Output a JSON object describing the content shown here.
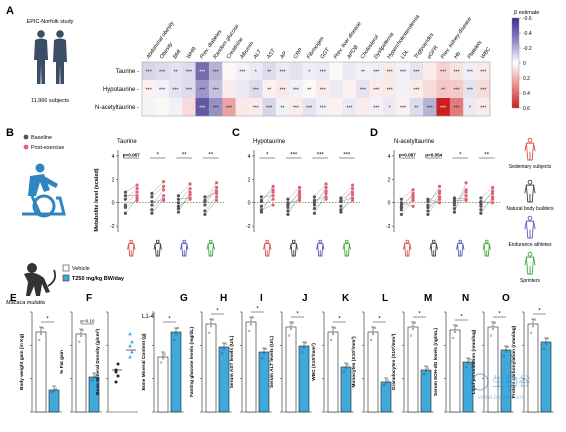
{
  "panels": {
    "A": {
      "letter": "A",
      "study": "EPIC-Norfolk study",
      "subjects": "11,966 subjects",
      "row_labels": [
        "Taurine",
        "Hypotaurine",
        "N-acetyltaurine"
      ],
      "column_labels": [
        "Abdominal obesity",
        "Obesity",
        "BMI",
        "WHR",
        "Prev. diabetes",
        "Random glucose",
        "Creatinine",
        "Albumin",
        "ALT",
        "AST",
        "AP",
        "CRP",
        "Fibrinogen",
        "GGT",
        "Prev. liver disease",
        "APOB",
        "Cholesterol",
        "Dyslipidemia",
        "Hypercholesterolemia",
        "LDL",
        "Triglycerides",
        "eGFR",
        "Prev. kidney disease",
        "Hb",
        "Platelets",
        "WBC"
      ],
      "heatmap": [
        [
          -0.12,
          -0.1,
          -0.08,
          -0.1,
          -0.42,
          -0.22,
          0.02,
          -0.04,
          -0.06,
          -0.1,
          -0.06,
          -0.08,
          -0.05,
          -0.06,
          0.02,
          -0.06,
          -0.04,
          -0.05,
          0.06,
          -0.04,
          -0.08,
          0.05,
          0.12,
          0.08,
          -0.05,
          0.06
        ],
        [
          0.04,
          -0.04,
          -0.08,
          -0.1,
          -0.3,
          -0.18,
          0.05,
          -0.06,
          -0.1,
          0.04,
          0.06,
          -0.04,
          0.02,
          0.05,
          -0.06,
          0.04,
          -0.08,
          0.05,
          0.06,
          -0.04,
          0.05,
          0.1,
          0.15,
          0.14,
          -0.08,
          0.1
        ],
        [
          -0.03,
          0.02,
          -0.04,
          0.1,
          -0.48,
          -0.32,
          0.25,
          0.06,
          0.05,
          -0.12,
          -0.04,
          0.05,
          -0.08,
          -0.04,
          0.04,
          -0.06,
          0.05,
          -0.04,
          -0.06,
          0.04,
          -0.1,
          -0.22,
          0.6,
          0.35,
          -0.06,
          0.05
        ]
      ],
      "significance": [
        [
          "***",
          "***",
          "**",
          "***",
          "***",
          "***",
          "",
          "***",
          "*",
          "**",
          "***",
          "",
          "*",
          "***",
          "",
          "",
          "**",
          "***",
          "***",
          "***",
          "***",
          "",
          "***",
          "***",
          "***",
          "***"
        ],
        [
          "***",
          "***",
          "***",
          "***",
          "***",
          "***",
          "",
          "",
          "***",
          "**",
          "***",
          "***",
          "**",
          "***",
          "",
          "",
          "***",
          "***",
          "***",
          "",
          "***",
          "",
          "**",
          "***",
          "***",
          "***"
        ],
        [
          "",
          "",
          "",
          "",
          "***",
          "***",
          "***",
          "",
          "***",
          "***",
          "**",
          "***",
          "***",
          "***",
          "",
          "***",
          "",
          "***",
          "*",
          "***",
          "**",
          "***",
          "***",
          "***",
          "*",
          "***"
        ]
      ],
      "legend": {
        "title": "β estimate",
        "ticks": [
          "-0.6",
          "-0.4",
          "-0.2",
          "0",
          "0.2",
          "0.4",
          "0.6"
        ],
        "range": [
          -0.6,
          0.6
        ]
      },
      "colors": {
        "negative": "#3b2f8f",
        "zero": "#ffffff",
        "positive": "#cc1f1f"
      }
    },
    "B": {
      "letter": "B",
      "legend": [
        "Baseline",
        "Post-exercise"
      ],
      "title": "Taurine",
      "ylabel": "Metabolite level (scaled)",
      "yticks": [
        "4",
        "2",
        "0",
        "-2"
      ],
      "pvalues": [
        "p=0.067",
        "*",
        "**",
        "**"
      ]
    },
    "C": {
      "letter": "C",
      "title": "Hypotaurine",
      "yticks": [
        "4",
        "2",
        "0",
        "-2"
      ],
      "pvalues": [
        "*",
        "***",
        "***",
        "***"
      ]
    },
    "D": {
      "letter": "D",
      "title": "N-acetyltaurine",
      "yticks": [
        "4",
        "2",
        "0",
        "-2"
      ],
      "pvalues": [
        "p=0.067",
        "p=0.054",
        "*",
        "**"
      ]
    },
    "groups": [
      "Sedentary subjects",
      "Natural body builders",
      "Endurance athletes",
      "Sprinters"
    ],
    "group_colors": [
      "#d9534f",
      "#444444",
      "#5b5bbf",
      "#3faa3f"
    ],
    "series_colors": {
      "baseline": "#555555",
      "post": "#e06070",
      "vehicle": "#ffffff",
      "treated": "#3fa9dc"
    },
    "exercise_data": {
      "B": [
        {
          "baseline": [
            -0.9,
            -0.2,
            0.3,
            0.6,
            -0.4,
            0.9
          ],
          "post": [
            0.4,
            0.9,
            1.2,
            0.6,
            0.2,
            1.5
          ]
        },
        {
          "baseline": [
            -0.6,
            -0.2,
            0.1,
            0.5,
            -0.9,
            0.8
          ],
          "post": [
            0.6,
            1.1,
            0.2,
            1.4,
            0.3,
            1.8
          ]
        },
        {
          "baseline": [
            -0.5,
            0.0,
            0.3,
            -0.8,
            0.6,
            -0.3
          ],
          "post": [
            0.7,
            1.2,
            0.4,
            0.9,
            1.6,
            0.3
          ]
        },
        {
          "baseline": [
            -0.7,
            0.2,
            -0.2,
            0.5,
            -1.0,
            0.1
          ],
          "post": [
            0.5,
            1.0,
            1.3,
            0.8,
            0.2,
            1.7
          ]
        }
      ],
      "C": [
        {
          "baseline": [
            -0.8,
            -0.3,
            0.2,
            0.5,
            -0.6,
            0.1
          ],
          "post": [
            0.9,
            0.3,
            1.1,
            0.6,
            -0.2,
            1.4
          ]
        },
        {
          "baseline": [
            -1.0,
            -0.4,
            0.0,
            0.3,
            -0.7,
            -0.2
          ],
          "post": [
            0.6,
            1.0,
            0.2,
            1.3,
            0.4,
            0.8
          ]
        },
        {
          "baseline": [
            -0.9,
            -0.2,
            0.2,
            0.5,
            -0.5,
            0.0
          ],
          "post": [
            0.8,
            1.3,
            0.5,
            1.6,
            0.3,
            1.0
          ]
        },
        {
          "baseline": [
            -0.8,
            -0.3,
            0.1,
            0.4,
            -0.6,
            0.2
          ],
          "post": [
            0.7,
            1.2,
            0.4,
            1.5,
            0.2,
            0.9
          ]
        }
      ],
      "D": [
        {
          "baseline": [
            -1.0,
            -0.4,
            0.0,
            0.3,
            -0.6,
            -0.2
          ],
          "post": [
            0.2,
            0.8,
            -0.3,
            1.1,
            0.4,
            0.6
          ]
        },
        {
          "baseline": [
            -0.7,
            -0.2,
            0.3,
            -1.0,
            0.1,
            -0.4
          ],
          "post": [
            0.8,
            1.4,
            0.0,
            0.5,
            1.0,
            0.3
          ]
        },
        {
          "baseline": [
            -0.5,
            0.0,
            0.4,
            -0.8,
            0.2,
            -0.2
          ],
          "post": [
            0.6,
            1.1,
            0.3,
            1.7,
            0.2,
            0.9
          ]
        },
        {
          "baseline": [
            -0.9,
            -0.3,
            0.1,
            0.4,
            -0.6,
            -0.1
          ],
          "post": [
            0.5,
            1.0,
            0.0,
            1.3,
            0.3,
            0.8
          ]
        }
      ]
    },
    "animal": {
      "species": "Macaca mulatta",
      "legend": [
        "Vehicle",
        "T250 mg/kg BW/day"
      ]
    },
    "bars": [
      {
        "letter": "E",
        "ylabel": "Body weight gain (in Kg)",
        "vehicle": 0.8,
        "treated": 0.22,
        "sig": "*"
      },
      {
        "letter": "",
        "ylabel": "% Fat gain",
        "vehicle": 0.78,
        "treated": 0.35,
        "sig": "p=0.16"
      },
      {
        "letter": "F",
        "ylabel": "Bone Mineral Density (g/cm²)",
        "vehicle": 0.42,
        "treated": 0.62,
        "sig": "",
        "scatter": true,
        "title": "L1-4"
      },
      {
        "letter": "",
        "ylabel": "Bone Mineral Content (g)",
        "vehicle": 0.55,
        "treated": 0.8,
        "sig": "*"
      },
      {
        "letter": "G",
        "ylabel": "Fasting glucose levels (mg/dL)",
        "vehicle": 0.88,
        "treated": 0.65,
        "sig": "*"
      },
      {
        "letter": "H",
        "ylabel": "Serum AST levels (U/L)",
        "vehicle": 0.9,
        "treated": 0.6,
        "sig": "*"
      },
      {
        "letter": "I",
        "ylabel": "Serum ALT levels (U/L)",
        "vehicle": 0.85,
        "treated": 0.66,
        "sig": "*"
      },
      {
        "letter": "J",
        "ylabel": "WBC (X10³/mm³)",
        "vehicle": 0.8,
        "treated": 0.45,
        "sig": "*"
      },
      {
        "letter": "K",
        "ylabel": "Monocytes (X10³/mm³)",
        "vehicle": 0.8,
        "treated": 0.3,
        "sig": "*"
      },
      {
        "letter": "L",
        "ylabel": "Granulocytes (X10³/mm³)",
        "vehicle": 0.85,
        "treated": 0.42,
        "sig": "*"
      },
      {
        "letter": "M",
        "ylabel": "Serum 8OH-dG levels (ng/mL)",
        "vehicle": 0.82,
        "treated": 0.5,
        "sig": "*"
      },
      {
        "letter": "N",
        "ylabel": "Lipid peroxidation (nmol/ug)",
        "vehicle": 0.85,
        "treated": 0.62,
        "sig": "*"
      },
      {
        "letter": "O",
        "ylabel": "Protein carbonylation (nmol/ug)",
        "vehicle": 0.88,
        "treated": 0.7,
        "sig": "*"
      }
    ],
    "watermark": {
      "cn": "生物谷",
      "url": "www.bioon.com"
    }
  }
}
